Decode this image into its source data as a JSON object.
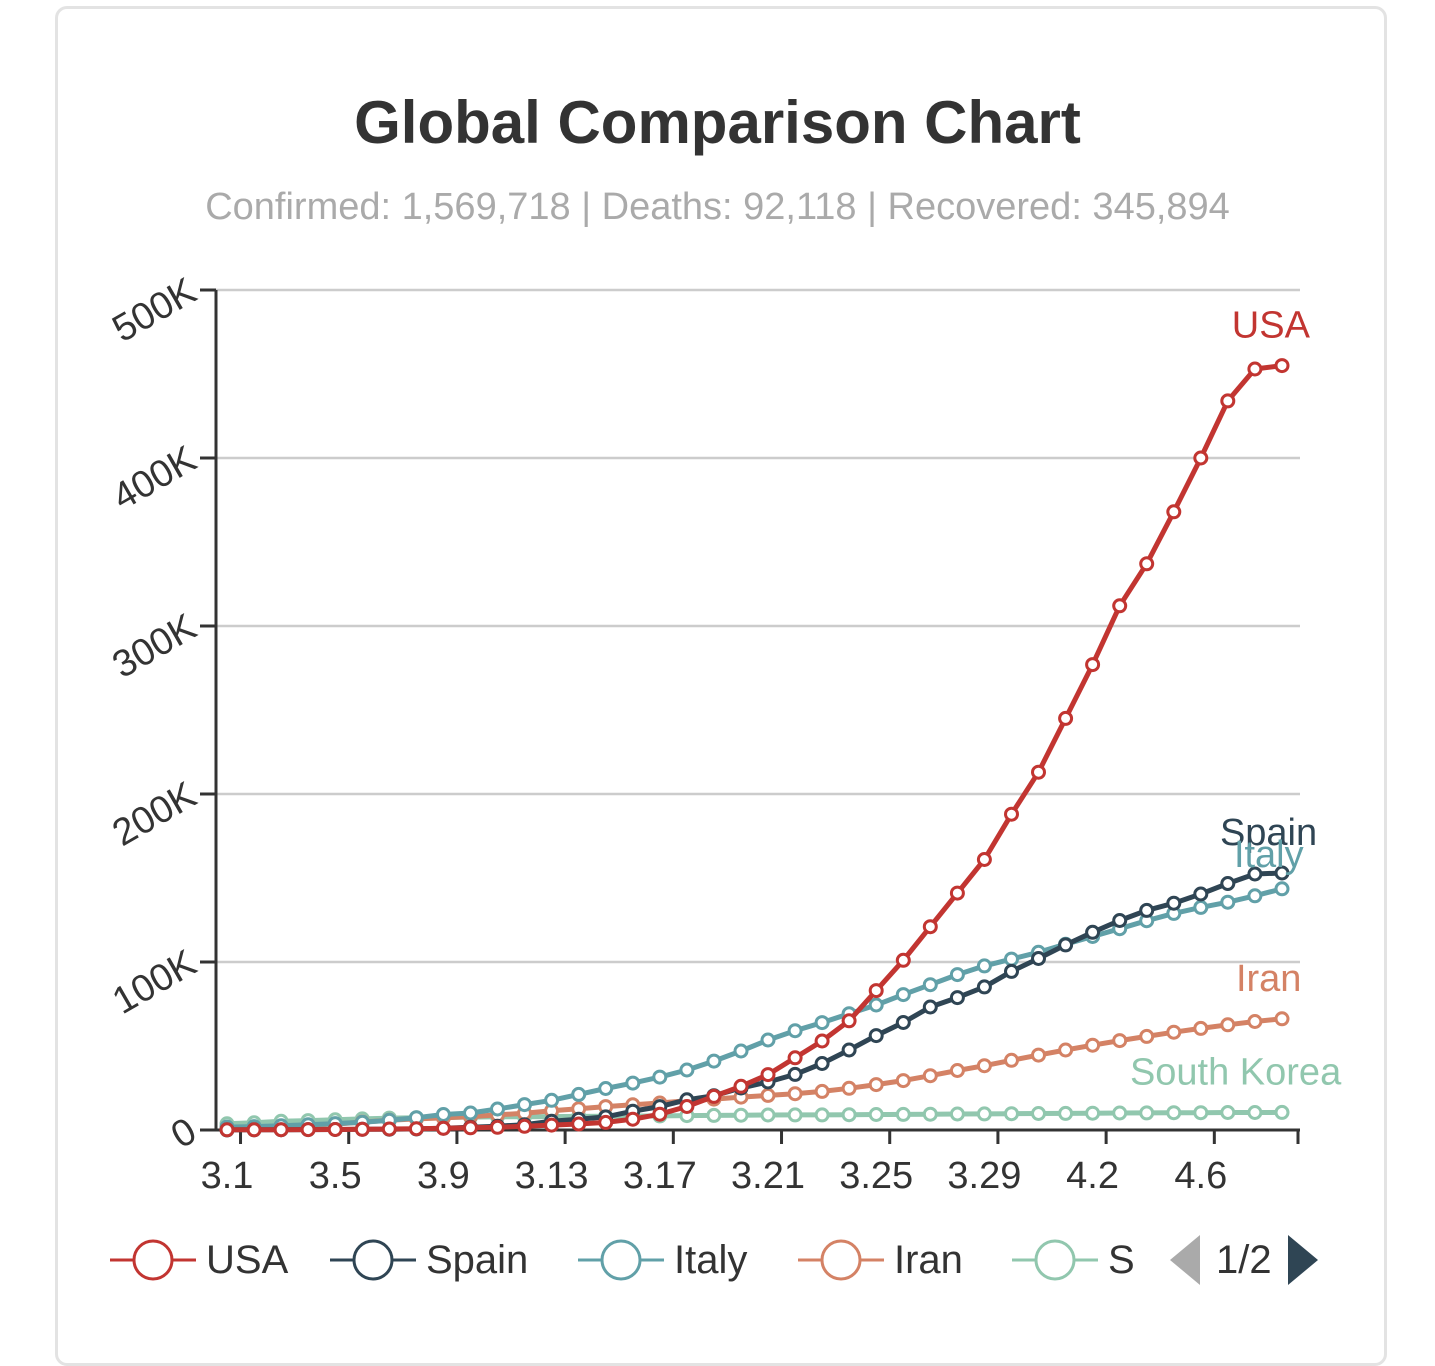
{
  "title": "Global Comparison Chart",
  "subtitle": "Confirmed: 1,569,718 | Deaths: 92,118 | Recovered: 345,894",
  "legend_page": "1/2",
  "legend_icons": {
    "prev": "triangle-left-icon",
    "next": "triangle-right-icon"
  },
  "chart_data": {
    "type": "line",
    "title": "Global Comparison Chart",
    "subtitle": "Confirmed: 1,569,718 | Deaths: 92,118 | Recovered: 345,894",
    "xlabel": "",
    "ylabel": "",
    "ylim": [
      0,
      500000
    ],
    "yticks": [
      0,
      100000,
      200000,
      300000,
      400000,
      500000
    ],
    "ytick_labels": [
      "0",
      "100K",
      "200K",
      "300K",
      "400K",
      "500K"
    ],
    "xtick_labels": [
      "3.1",
      "3.5",
      "3.9",
      "3.13",
      "3.17",
      "3.21",
      "3.25",
      "3.29",
      "4.2",
      "4.6"
    ],
    "x": [
      "3.1",
      "3.2",
      "3.3",
      "3.4",
      "3.5",
      "3.6",
      "3.7",
      "3.8",
      "3.9",
      "3.10",
      "3.11",
      "3.12",
      "3.13",
      "3.14",
      "3.15",
      "3.16",
      "3.17",
      "3.18",
      "3.19",
      "3.20",
      "3.21",
      "3.22",
      "3.23",
      "3.24",
      "3.25",
      "3.26",
      "3.27",
      "3.28",
      "3.29",
      "3.30",
      "3.31",
      "4.1",
      "4.2",
      "4.3",
      "4.4",
      "4.5",
      "4.6",
      "4.7",
      "4.8",
      "4.9"
    ],
    "grid": true,
    "legend_position": "bottom",
    "series": [
      {
        "name": "USA",
        "color": "#c23531",
        "values": [
          100,
          120,
          160,
          220,
          320,
          440,
          600,
          760,
          1000,
          1300,
          1600,
          2200,
          2900,
          3600,
          4500,
          6400,
          9400,
          14000,
          20000,
          26000,
          33000,
          43000,
          53000,
          65000,
          83000,
          101000,
          121000,
          141000,
          161000,
          188000,
          213000,
          245000,
          277000,
          312000,
          337000,
          368000,
          400000,
          434000,
          453000,
          455000
        ]
      },
      {
        "name": "Spain",
        "color": "#2f4554",
        "values": [
          80,
          120,
          160,
          220,
          280,
          400,
          500,
          670,
          1070,
          1690,
          2280,
          3150,
          5230,
          6400,
          7800,
          11200,
          13900,
          18000,
          20400,
          25000,
          28600,
          33100,
          39600,
          47600,
          56200,
          64000,
          73200,
          78800,
          85200,
          94400,
          102100,
          110200,
          117700,
          124700,
          130700,
          135000,
          140500,
          146700,
          152400,
          153000
        ]
      },
      {
        "name": "Italy",
        "color": "#61a0a8",
        "values": [
          1700,
          2000,
          2500,
          3100,
          3800,
          4600,
          5800,
          7300,
          9200,
          10100,
          12500,
          15100,
          17700,
          21200,
          24700,
          27900,
          31500,
          35700,
          41000,
          47000,
          53600,
          59100,
          63900,
          69200,
          74400,
          80600,
          86500,
          92500,
          97700,
          101700,
          105800,
          110600,
          115200,
          119800,
          124600,
          128900,
          132500,
          135600,
          139400,
          143600
        ]
      },
      {
        "name": "Iran",
        "color": "#d48265",
        "values": [
          980,
          1500,
          2300,
          2900,
          3500,
          4700,
          5800,
          6600,
          7200,
          8000,
          9000,
          10000,
          11400,
          12700,
          13900,
          15000,
          16100,
          17400,
          18400,
          19600,
          20600,
          21600,
          23000,
          24800,
          27000,
          29400,
          32300,
          35400,
          38300,
          41500,
          44600,
          47600,
          50500,
          53200,
          55700,
          58200,
          60500,
          62600,
          64600,
          66200
        ]
      },
      {
        "name": "South Korea",
        "color": "#91c7ae",
        "values": [
          3700,
          4300,
          5200,
          5600,
          6100,
          6600,
          7100,
          7300,
          7500,
          7700,
          7900,
          7900,
          8000,
          8100,
          8200,
          8300,
          8400,
          8600,
          8700,
          8800,
          8900,
          9000,
          9000,
          9100,
          9200,
          9300,
          9400,
          9500,
          9600,
          9700,
          9800,
          9900,
          10000,
          10100,
          10200,
          10300,
          10300,
          10400,
          10400,
          10500
        ]
      }
    ]
  }
}
